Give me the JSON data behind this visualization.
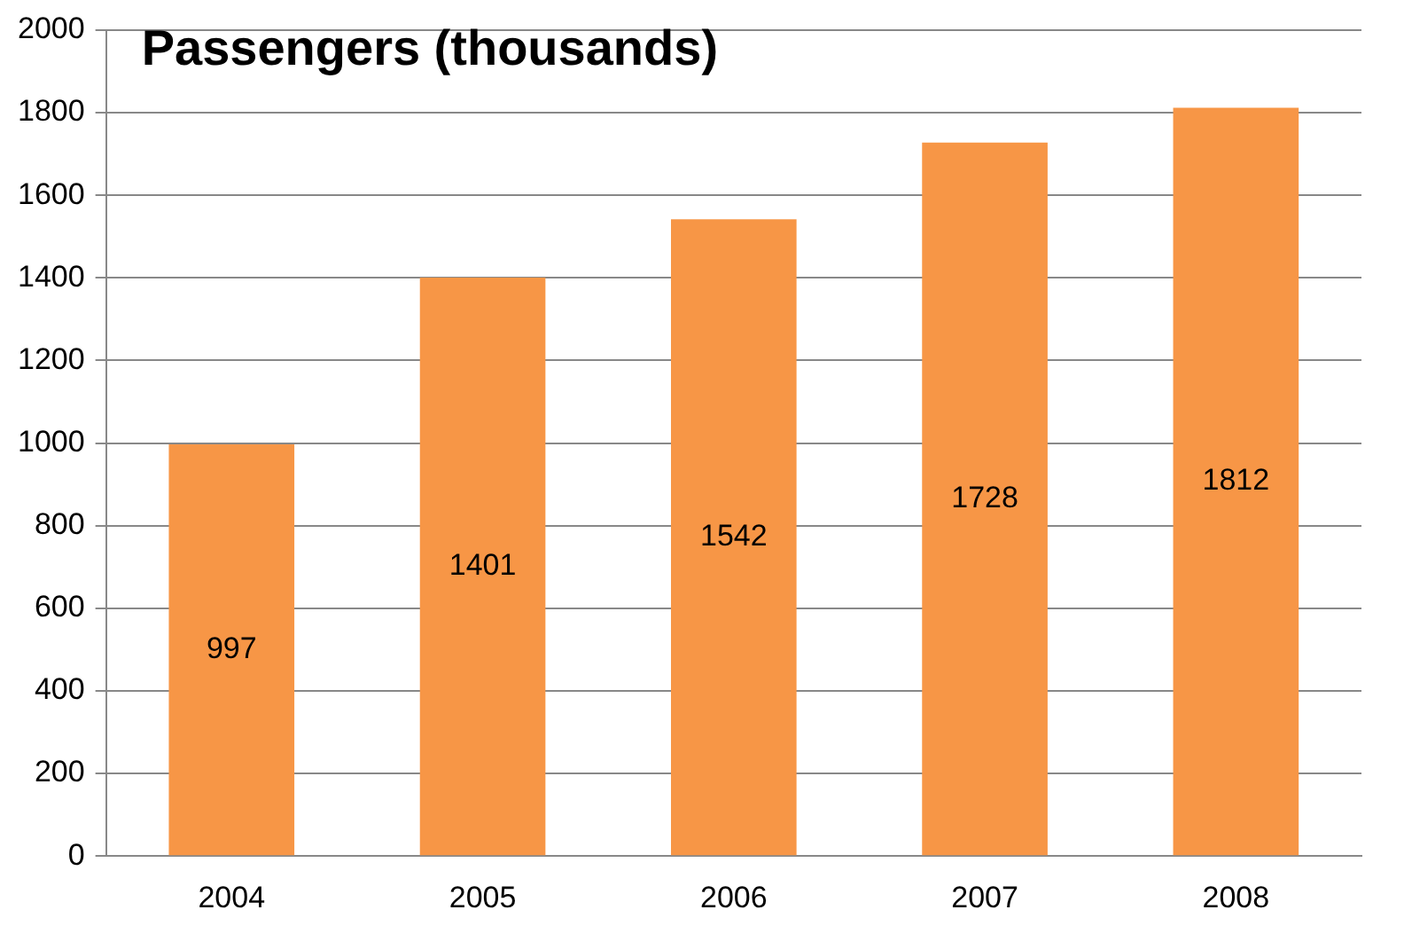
{
  "chart_data": {
    "type": "bar",
    "title": "Passengers (thousands)",
    "categories": [
      "2004",
      "2005",
      "2006",
      "2007",
      "2008"
    ],
    "values": [
      997,
      1401,
      1542,
      1728,
      1812
    ],
    "color": "#f79646",
    "ylim": [
      0,
      2000
    ],
    "yticks": [
      0,
      200,
      400,
      600,
      800,
      1000,
      1200,
      1400,
      1600,
      1800,
      2000
    ],
    "grid": "y",
    "data_labels": true,
    "legend": false
  }
}
